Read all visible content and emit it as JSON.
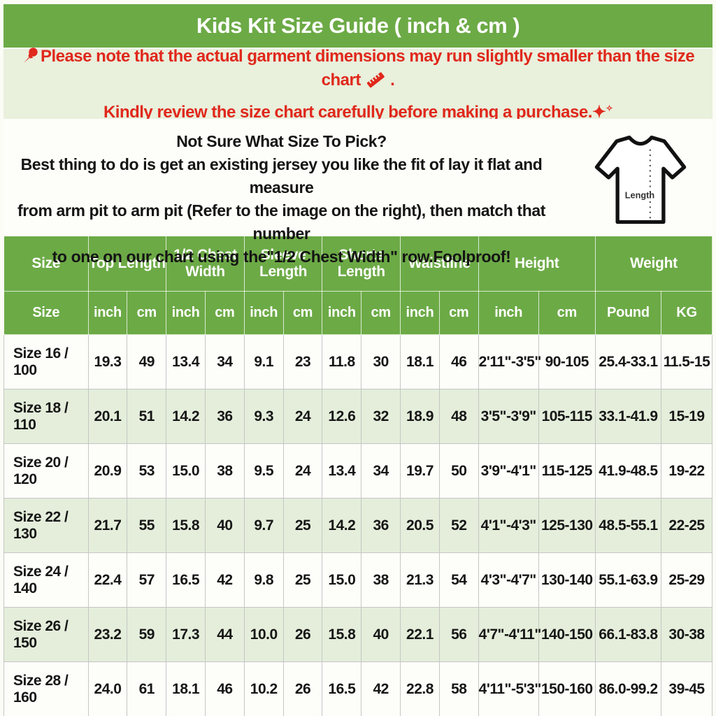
{
  "title": "Kids Kit Size Guide ( inch & cm )",
  "notice": {
    "line1": "Please note that the actual garment dimensions may run slightly smaller than the size chart",
    "line1_suffix": " .",
    "line2": "Kindly review the size chart carefully before making a purchase.",
    "pushpin_icon": "pushpin-icon",
    "ruler_icon": "ruler-icon",
    "sparkles_icon": "sparkles-icon"
  },
  "howto": {
    "heading": "Not Sure What Size To Pick?",
    "line1": "Best thing to do is get an existing jersey you like the fit of lay it flat and measure",
    "line2": "from arm pit to arm pit (Refer to the image on the right), then match that number",
    "line3": "to one on our chart using the\"1/2 Chest Width\" row.Foolproof!",
    "shirt_label": "Length"
  },
  "table": {
    "header_groups": [
      {
        "label": "Size",
        "colspan": 1
      },
      {
        "label": "Top Length",
        "colspan": 2
      },
      {
        "label": "1/2 Chest Width",
        "colspan": 2
      },
      {
        "label": "Sleeve Length",
        "colspan": 2
      },
      {
        "label": "Shorts Length",
        "colspan": 2
      },
      {
        "label": "Waistline",
        "colspan": 2
      },
      {
        "label": "Height",
        "colspan": 2
      },
      {
        "label": "Weight",
        "colspan": 2
      }
    ],
    "subheaders": [
      "Size",
      "inch",
      "cm",
      "inch",
      "cm",
      "inch",
      "cm",
      "inch",
      "cm",
      "inch",
      "cm",
      "inch",
      "cm",
      "Pound",
      "KG"
    ],
    "rows": [
      [
        "Size 16 / 100",
        "19.3",
        "49",
        "13.4",
        "34",
        "9.1",
        "23",
        "11.8",
        "30",
        "18.1",
        "46",
        "2'11\"-3'5\"",
        "90-105",
        "25.4-33.1",
        "11.5-15"
      ],
      [
        "Size 18 / 110",
        "20.1",
        "51",
        "14.2",
        "36",
        "9.3",
        "24",
        "12.6",
        "32",
        "18.9",
        "48",
        "3'5\"-3'9\"",
        "105-115",
        "33.1-41.9",
        "15-19"
      ],
      [
        "Size 20 / 120",
        "20.9",
        "53",
        "15.0",
        "38",
        "9.5",
        "24",
        "13.4",
        "34",
        "19.7",
        "50",
        "3'9\"-4'1\"",
        "115-125",
        "41.9-48.5",
        "19-22"
      ],
      [
        "Size 22 / 130",
        "21.7",
        "55",
        "15.8",
        "40",
        "9.7",
        "25",
        "14.2",
        "36",
        "20.5",
        "52",
        "4'1\"-4'3\"",
        "125-130",
        "48.5-55.1",
        "22-25"
      ],
      [
        "Size 24 / 140",
        "22.4",
        "57",
        "16.5",
        "42",
        "9.8",
        "25",
        "15.0",
        "38",
        "21.3",
        "54",
        "4'3\"-4'7\"",
        "130-140",
        "55.1-63.9",
        "25-29"
      ],
      [
        "Size 26 / 150",
        "23.2",
        "59",
        "17.3",
        "44",
        "10.0",
        "26",
        "15.8",
        "40",
        "22.1",
        "56",
        "4'7\"-4'11\"",
        "140-150",
        "66.1-83.8",
        "30-38"
      ],
      [
        "Size 28 / 160",
        "24.0",
        "61",
        "18.1",
        "46",
        "10.2",
        "26",
        "16.5",
        "42",
        "22.8",
        "58",
        "4'11\"-5'3\"",
        "150-160",
        "86.0-99.2",
        "39-45"
      ]
    ]
  },
  "colors": {
    "brand_green": "#6caa46",
    "note_background": "#e9f0dc",
    "accent_red": "#e0281c",
    "row_alt_green": "#e4eedb"
  }
}
